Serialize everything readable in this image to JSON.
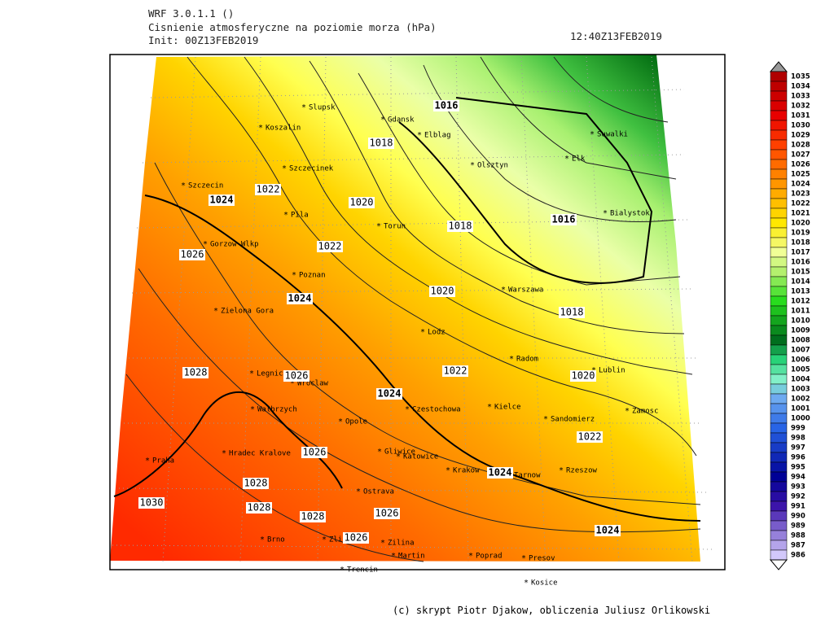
{
  "header": {
    "model": "WRF 3.0.1.1 ()",
    "title": "Cisnienie atmosferyczne na poziomie morza (hPa)",
    "init": "Init: 00Z13FEB2019",
    "valid": "12:40Z13FEB2019"
  },
  "cities": [
    "Slupsk",
    "Gdansk",
    "Koszalin",
    "Elblag",
    "Suwalki",
    "Elk",
    "Szczecinek",
    "Olsztyn",
    "Szczecin",
    "Bialystok",
    "Pila",
    "Torun",
    "Gorzow Wlkp",
    "Poznan",
    "Warszawa",
    "Zielona Gora",
    "Lodz",
    "Radom",
    "Lublin",
    "Legnica",
    "Wroclaw",
    "Walbrzych",
    "Kielce",
    "Czestochowa",
    "Sandomierz",
    "Zamosc",
    "Opole",
    "Praha",
    "Hradec Kralove",
    "Gliwice",
    "Katowice",
    "Krakow",
    "Tarnow",
    "Rzeszow",
    "Ostrava",
    "Brno",
    "Zlin",
    "Zilina",
    "Martin",
    "Poprad",
    "Presov",
    "Trencin",
    "Kosice"
  ],
  "contour_labels": [
    "1016",
    "1018",
    "1022",
    "1024",
    "1020",
    "1018",
    "1016",
    "1022",
    "1026",
    "1020",
    "1024",
    "1018",
    "1022",
    "1020",
    "1028",
    "1026",
    "1024",
    "1026",
    "1022",
    "1024",
    "1028",
    "1030",
    "1028",
    "1028",
    "1026",
    "1026",
    "1024"
  ],
  "colorbar": [
    1035,
    1034,
    1033,
    1032,
    1031,
    1030,
    1029,
    1028,
    1027,
    1026,
    1025,
    1024,
    1023,
    1022,
    1021,
    1020,
    1019,
    1018,
    1017,
    1016,
    1015,
    1014,
    1013,
    1012,
    1011,
    1010,
    1009,
    1008,
    1007,
    1006,
    1005,
    1004,
    1003,
    1002,
    1001,
    1000,
    999,
    998,
    997,
    996,
    995,
    994,
    993,
    992,
    991,
    990,
    989,
    988,
    987,
    986
  ],
  "credit": "(c) skrypt Piotr Djakow, obliczenia Juliusz Orlikowski"
}
